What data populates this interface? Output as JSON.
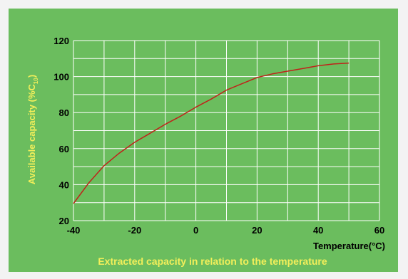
{
  "colors": {
    "panel": "#6bbd5e",
    "grid": "#ffffff",
    "line": "#c0221a",
    "label_yellow": "#f3ef5a",
    "tick_text": "#000000"
  },
  "chart_data": {
    "type": "line",
    "title": "",
    "caption": "Extracted capacity in relation to the temperature",
    "xlabel": "Temperature(°C)",
    "ylabel_main": "Available capacity (%C",
    "ylabel_sub": "10",
    "ylabel_end": ")",
    "xlim": [
      -40,
      60
    ],
    "ylim": [
      20,
      120
    ],
    "x_ticks": [
      -40,
      -20,
      0,
      20,
      40,
      60
    ],
    "y_ticks": [
      20,
      40,
      60,
      80,
      100,
      120
    ],
    "x_grid_step": 10,
    "y_grid_step": 10,
    "grid": true,
    "legend": "none",
    "series": [
      {
        "x": [
          -40,
          -35,
          -30,
          -25,
          -20,
          -15,
          -10,
          -5,
          0,
          5,
          10,
          15,
          20,
          25,
          30,
          35,
          40,
          45,
          50
        ],
        "y": [
          29.5,
          41,
          50.5,
          57.5,
          63.5,
          68.5,
          73.5,
          78,
          83,
          87.5,
          92.5,
          96,
          99.5,
          101.5,
          103,
          104.5,
          106,
          107,
          107.5
        ]
      }
    ]
  }
}
